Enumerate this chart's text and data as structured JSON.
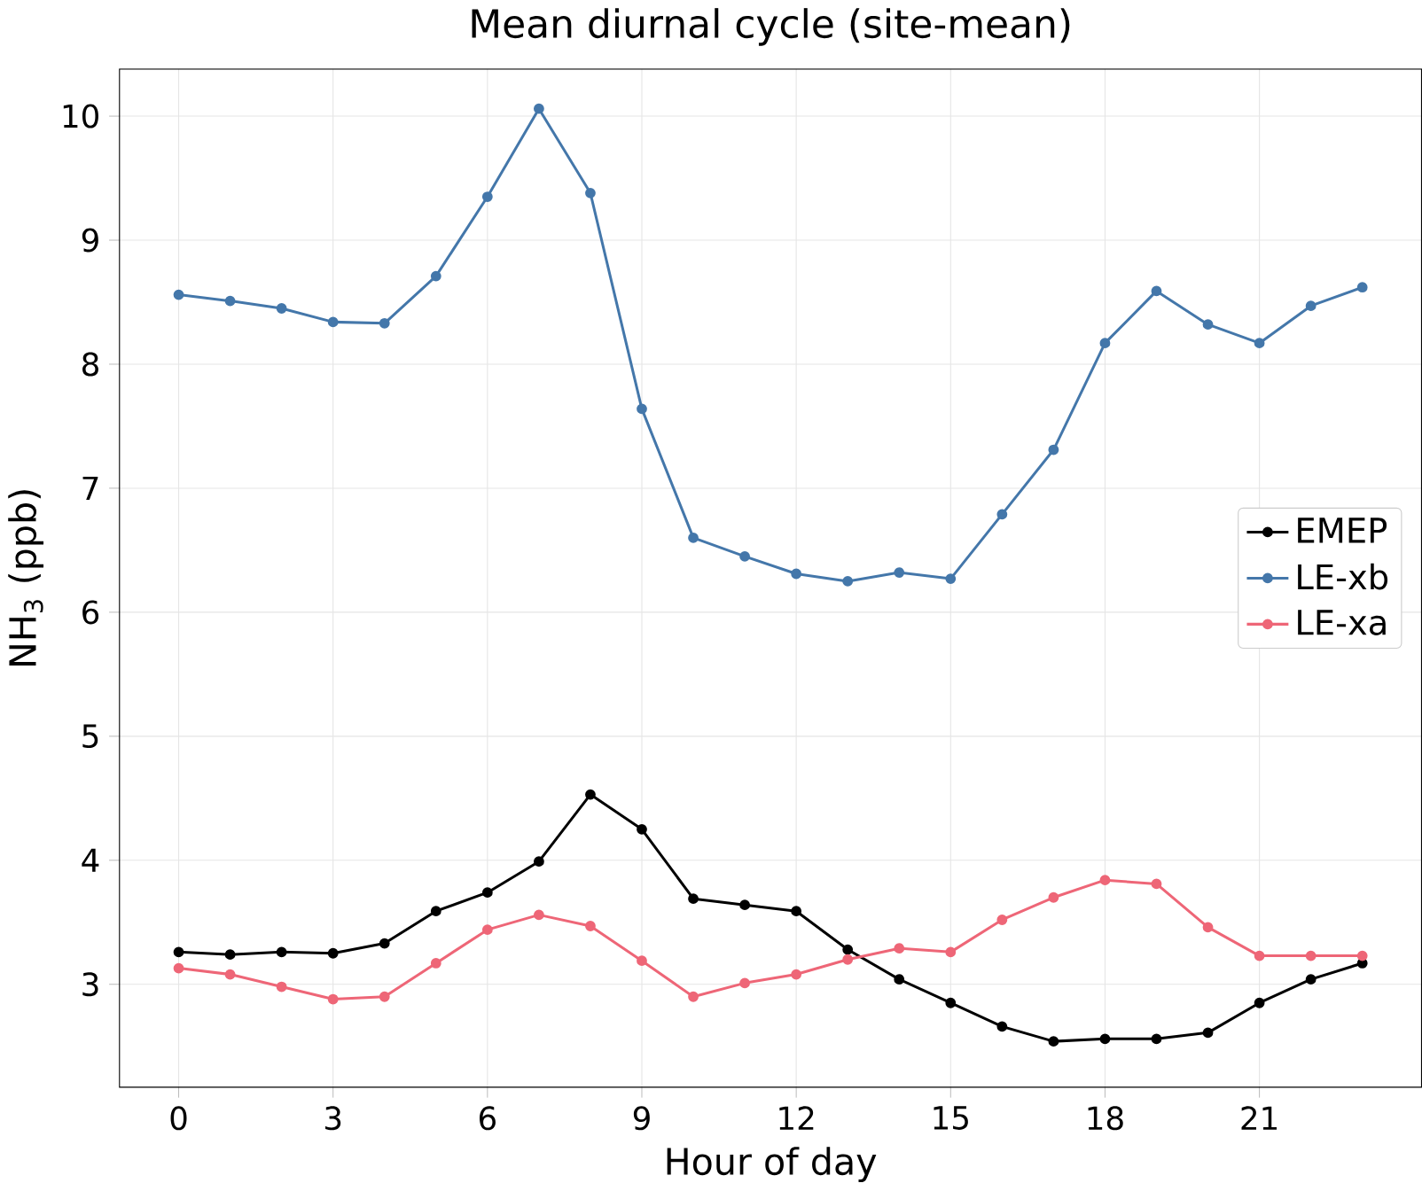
{
  "chart_data": {
    "type": "line",
    "title": "Mean diurnal cycle (site-mean)",
    "xlabel": "Hour of day",
    "ylabel": "NH$_{3}$ (ppb)",
    "x": [
      0,
      1,
      2,
      3,
      4,
      5,
      6,
      7,
      8,
      9,
      10,
      11,
      12,
      13,
      14,
      15,
      16,
      17,
      18,
      19,
      20,
      21,
      22,
      23
    ],
    "series": [
      {
        "name": "EMEP",
        "color": "#000000",
        "values": [
          3.26,
          3.24,
          3.26,
          3.25,
          3.33,
          3.59,
          3.74,
          3.99,
          4.53,
          4.25,
          3.69,
          3.64,
          3.59,
          3.28,
          3.04,
          2.85,
          2.66,
          2.54,
          2.56,
          2.56,
          2.61,
          2.85,
          3.04,
          3.17
        ]
      },
      {
        "name": "LE-xb",
        "color": "#4477aa",
        "values": [
          8.56,
          8.51,
          8.45,
          8.34,
          8.33,
          8.71,
          9.35,
          10.06,
          9.38,
          7.64,
          6.6,
          6.45,
          6.31,
          6.25,
          6.32,
          6.27,
          6.79,
          7.31,
          8.17,
          8.59,
          8.32,
          8.17,
          8.47,
          8.62
        ]
      },
      {
        "name": "LE-xa",
        "color": "#ee6677",
        "values": [
          3.13,
          3.08,
          2.98,
          2.88,
          2.9,
          3.17,
          3.44,
          3.56,
          3.47,
          3.19,
          2.9,
          3.01,
          3.08,
          3.2,
          3.29,
          3.26,
          3.52,
          3.7,
          3.84,
          3.81,
          3.46,
          3.23,
          3.23,
          3.23
        ]
      }
    ],
    "xlim": [
      -1.15,
      24.15
    ],
    "ylim": [
      2.17,
      10.38
    ],
    "xticks": [
      0,
      3,
      6,
      9,
      12,
      15,
      18,
      21
    ],
    "yticks": [
      3,
      4,
      5,
      6,
      7,
      8,
      9,
      10
    ],
    "grid": true,
    "legend": "right",
    "marker": "circle",
    "line_style": "solid"
  }
}
